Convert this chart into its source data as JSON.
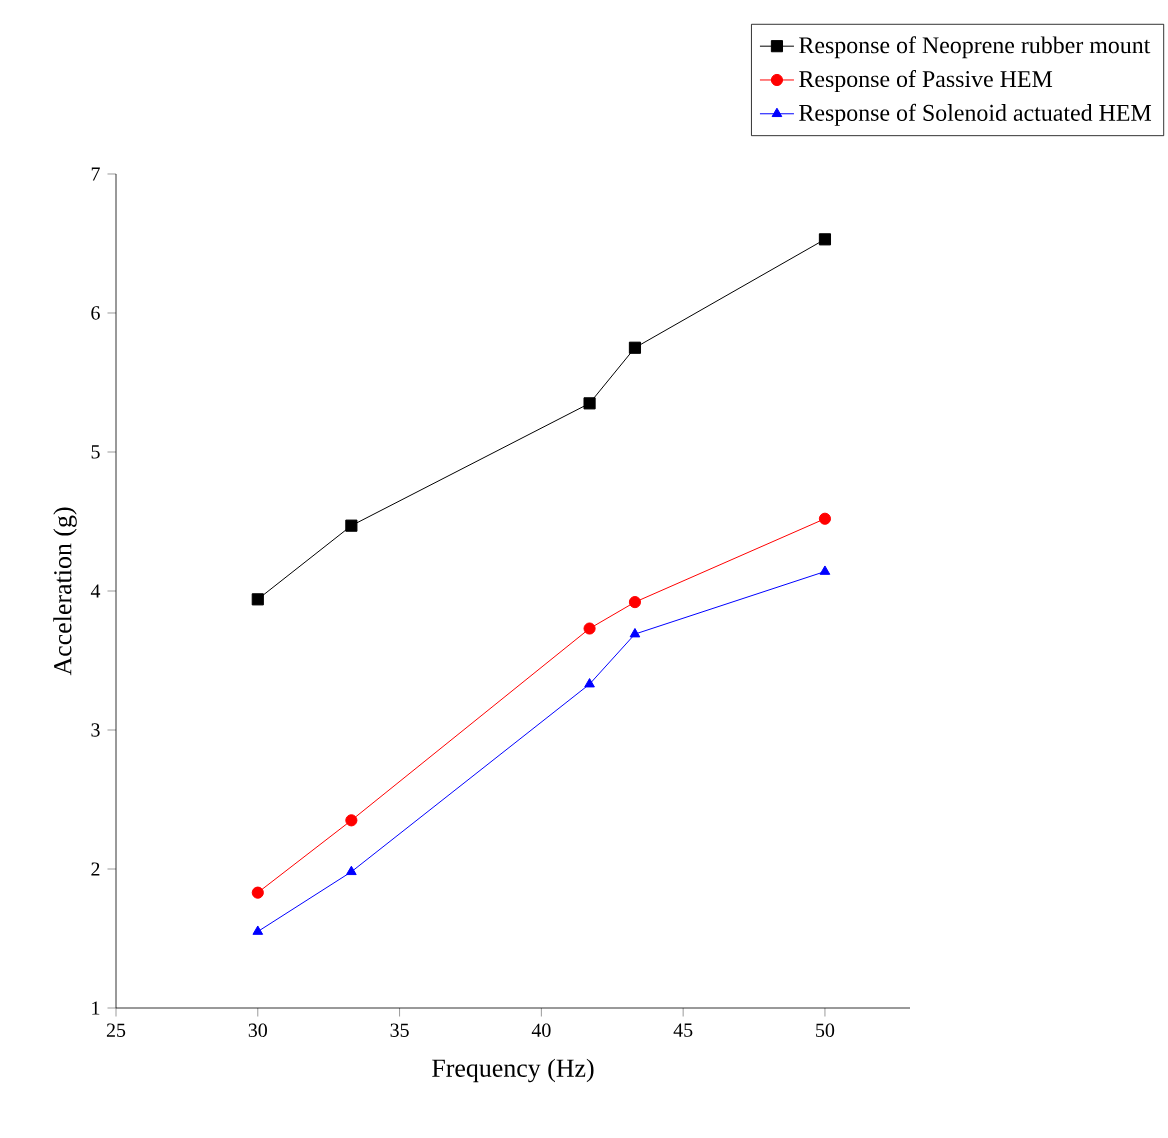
{
  "chart_data": {
    "type": "line",
    "xlabel": "Frequency (Hz)",
    "ylabel": "Acceleration (g)",
    "xlim": [
      25,
      53
    ],
    "xticks": [
      25,
      30,
      35,
      40,
      45,
      50
    ],
    "ylim": [
      1,
      7
    ],
    "yticks": [
      1,
      2,
      3,
      4,
      5,
      6,
      7
    ],
    "legend": "top right",
    "line_style": "solid",
    "x": [
      30,
      33.3,
      41.7,
      43.3,
      50
    ],
    "series": [
      {
        "name": "Response of Neoprene rubber mount",
        "color": "#000000",
        "marker": "square",
        "values": [
          3.94,
          4.47,
          5.35,
          5.75,
          6.53
        ]
      },
      {
        "name": "Response of Passive HEM",
        "color": "#ff0000",
        "marker": "circle",
        "values": [
          1.83,
          2.35,
          3.73,
          3.92,
          4.52
        ]
      },
      {
        "name": "Response of Solenoid actuated HEM",
        "color": "#0000ff",
        "marker": "triangle",
        "values": [
          1.55,
          1.98,
          3.33,
          3.69,
          4.14
        ]
      }
    ]
  }
}
